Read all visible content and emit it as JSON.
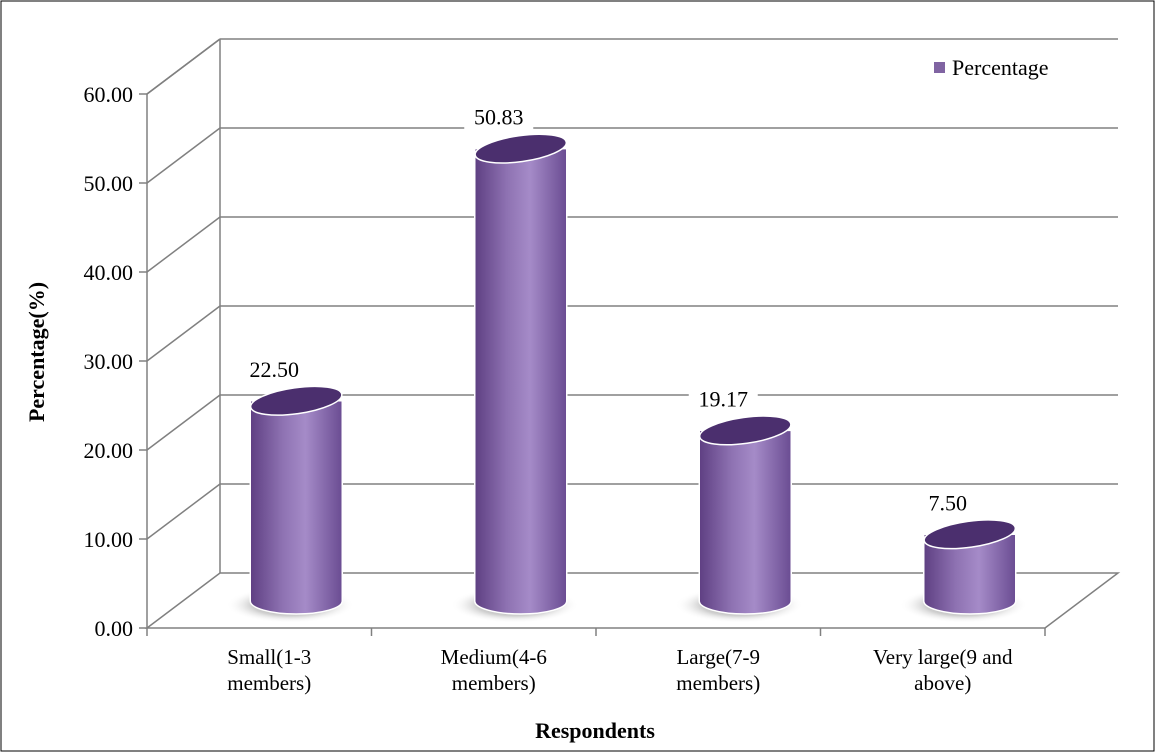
{
  "chart_data": {
    "type": "bar",
    "categories": [
      "Small(1-3 members)",
      "Medium(4-6 members)",
      "Large(7-9 members)",
      "Very large(9 and above)"
    ],
    "category_lines": [
      [
        "Small(1-3",
        "members)"
      ],
      [
        "Medium(4-6",
        "members)"
      ],
      [
        "Large(7-9",
        "members)"
      ],
      [
        "Very large(9 and",
        "above)"
      ]
    ],
    "series": [
      {
        "name": "Percentage",
        "values": [
          22.5,
          50.83,
          19.17,
          7.5
        ]
      }
    ],
    "data_labels": [
      "22.50",
      "50.83",
      "19.17",
      "7.50"
    ],
    "y_ticks": [
      "0.00",
      "10.00",
      "20.00",
      "30.00",
      "40.00",
      "50.00",
      "60.00"
    ],
    "ylim": [
      0,
      60
    ],
    "xlabel": "Respondents",
    "ylabel": "Percentage(%)",
    "grid": true,
    "legend_position": "top-right",
    "bar_shape": "3d-cylinder",
    "colors": {
      "bar": "#8064A2",
      "bar_light": "#A58BC8",
      "bar_dark": "#5E3F82",
      "top": "#4B2F6E",
      "grid": "#808080"
    }
  }
}
